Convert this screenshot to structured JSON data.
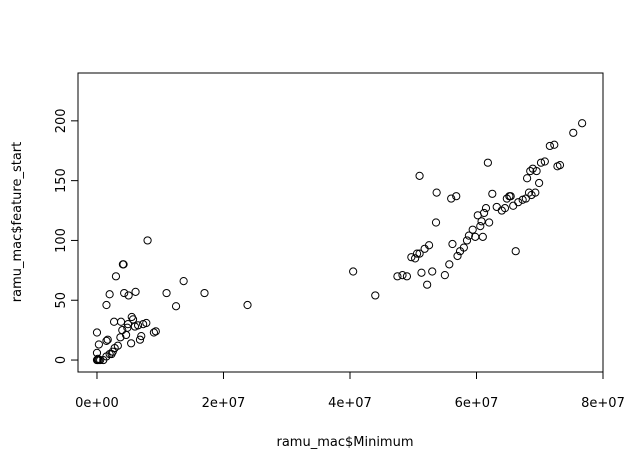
{
  "chart_data": {
    "type": "scatter",
    "title": "",
    "xlabel": "ramu_mac$Minimum",
    "ylabel": "ramu_mac$feature_start",
    "xlim": [
      -3000000,
      80000000
    ],
    "ylim": [
      -10,
      240
    ],
    "x_ticks": [
      0,
      20000000,
      40000000,
      60000000,
      80000000
    ],
    "x_tick_labels": [
      "0e+00",
      "2e+07",
      "4e+07",
      "6e+07",
      "8e+07"
    ],
    "y_ticks": [
      0,
      50,
      100,
      150,
      200
    ],
    "y_tick_labels": [
      "0",
      "50",
      "100",
      "150",
      "200"
    ],
    "grid": false,
    "legend": "none",
    "colors": {
      "points": "#000000",
      "axes": "#000000",
      "background": "#ffffff"
    },
    "points": [
      [
        0,
        0
      ],
      [
        100000,
        0
      ],
      [
        300000,
        0
      ],
      [
        500000,
        0
      ],
      [
        150000,
        1
      ],
      [
        0,
        6
      ],
      [
        300000,
        13
      ],
      [
        0,
        23
      ],
      [
        1000000,
        0
      ],
      [
        1500000,
        3
      ],
      [
        2000000,
        5
      ],
      [
        2300000,
        5
      ],
      [
        2500000,
        7
      ],
      [
        1500000,
        16
      ],
      [
        1700000,
        17
      ],
      [
        2800000,
        10
      ],
      [
        2700000,
        32
      ],
      [
        1500000,
        46
      ],
      [
        2000000,
        55
      ],
      [
        3000000,
        70
      ],
      [
        3300000,
        12
      ],
      [
        3700000,
        19
      ],
      [
        4000000,
        25
      ],
      [
        3800000,
        32
      ],
      [
        4100000,
        80
      ],
      [
        4200000,
        80
      ],
      [
        4300000,
        56
      ],
      [
        4600000,
        21
      ],
      [
        4800000,
        27
      ],
      [
        4900000,
        30
      ],
      [
        5000000,
        54
      ],
      [
        5400000,
        14
      ],
      [
        5500000,
        36
      ],
      [
        5700000,
        34
      ],
      [
        6000000,
        28
      ],
      [
        6100000,
        57
      ],
      [
        6500000,
        29
      ],
      [
        6800000,
        17
      ],
      [
        7000000,
        20
      ],
      [
        7300000,
        30
      ],
      [
        7800000,
        31
      ],
      [
        8000000,
        100
      ],
      [
        9000000,
        23
      ],
      [
        9300000,
        24
      ],
      [
        11000000,
        56
      ],
      [
        12500000,
        45
      ],
      [
        13700000,
        66
      ],
      [
        17000000,
        56
      ],
      [
        23800000,
        46
      ],
      [
        40500000,
        74
      ],
      [
        44000000,
        54
      ],
      [
        47500000,
        70
      ],
      [
        48300000,
        71
      ],
      [
        49000000,
        70
      ],
      [
        49700000,
        86
      ],
      [
        50300000,
        85
      ],
      [
        50600000,
        89
      ],
      [
        51000000,
        154
      ],
      [
        51000000,
        89
      ],
      [
        51300000,
        73
      ],
      [
        51800000,
        93
      ],
      [
        52200000,
        63
      ],
      [
        52500000,
        96
      ],
      [
        53000000,
        74
      ],
      [
        53600000,
        115
      ],
      [
        53700000,
        140
      ],
      [
        55000000,
        71
      ],
      [
        55700000,
        80
      ],
      [
        56000000,
        135
      ],
      [
        56200000,
        97
      ],
      [
        56800000,
        137
      ],
      [
        57000000,
        87
      ],
      [
        57400000,
        91
      ],
      [
        58000000,
        94
      ],
      [
        58500000,
        100
      ],
      [
        58800000,
        104
      ],
      [
        59400000,
        109
      ],
      [
        59800000,
        103
      ],
      [
        60200000,
        121
      ],
      [
        60600000,
        112
      ],
      [
        60800000,
        116
      ],
      [
        61000000,
        103
      ],
      [
        61200000,
        123
      ],
      [
        61500000,
        127
      ],
      [
        61800000,
        165
      ],
      [
        62000000,
        115
      ],
      [
        62500000,
        139
      ],
      [
        63200000,
        128
      ],
      [
        64000000,
        125
      ],
      [
        64500000,
        127
      ],
      [
        64800000,
        135
      ],
      [
        65200000,
        137
      ],
      [
        65400000,
        137
      ],
      [
        65800000,
        129
      ],
      [
        66200000,
        91
      ],
      [
        66600000,
        132
      ],
      [
        67300000,
        134
      ],
      [
        67800000,
        135
      ],
      [
        68000000,
        152
      ],
      [
        68300000,
        140
      ],
      [
        68500000,
        158
      ],
      [
        68700000,
        138
      ],
      [
        68900000,
        160
      ],
      [
        69300000,
        140
      ],
      [
        69500000,
        158
      ],
      [
        69900000,
        148
      ],
      [
        70200000,
        165
      ],
      [
        70800000,
        166
      ],
      [
        71600000,
        179
      ],
      [
        72300000,
        180
      ],
      [
        72800000,
        162
      ],
      [
        73200000,
        163
      ],
      [
        75300000,
        190
      ],
      [
        76700000,
        198
      ]
    ]
  }
}
